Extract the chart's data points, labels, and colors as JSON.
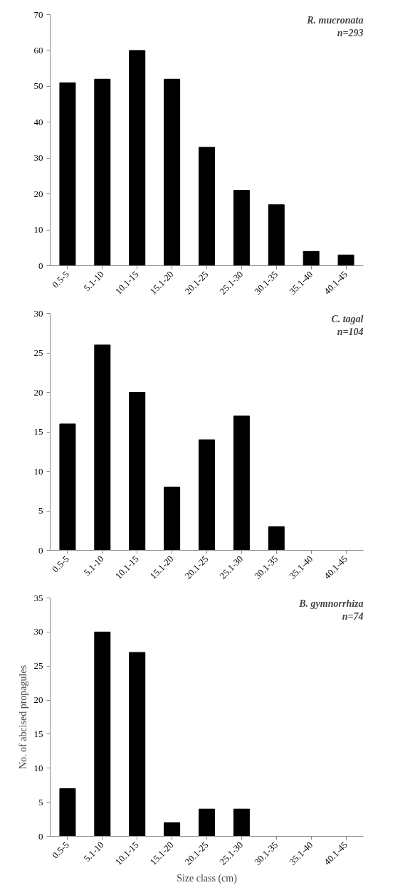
{
  "chart_data": [
    {
      "type": "bar",
      "categories": [
        "0.5-5",
        "5.1-10",
        "10.1-15",
        "15.1-20",
        "20.1-25",
        "25.1-30",
        "30.1-35",
        "35.1-40",
        "40.1-45"
      ],
      "values": [
        51,
        52,
        60,
        52,
        33,
        21,
        17,
        4,
        3
      ],
      "color": "#000000",
      "ylim": [
        0,
        70
      ],
      "yticks": [
        0,
        10,
        20,
        30,
        40,
        50,
        60,
        70
      ],
      "grid": false,
      "annotations": [
        "R. mucronata",
        "n=293"
      ]
    },
    {
      "type": "bar",
      "categories": [
        "0.5-5",
        "5.1-10",
        "10.1-15",
        "15.1-20",
        "20.1-25",
        "25.1-30",
        "30.1-35",
        "35.1-40",
        "40.1-45"
      ],
      "values": [
        16,
        26,
        20,
        8,
        14,
        17,
        3,
        0,
        0
      ],
      "color": "#000000",
      "ylim": [
        0,
        30
      ],
      "yticks": [
        0,
        5,
        10,
        15,
        20,
        25,
        30
      ],
      "grid": false,
      "annotations": [
        "C. tagal",
        "n=104"
      ]
    },
    {
      "type": "bar",
      "categories": [
        "0.5-5",
        "5.1-10",
        "10.1-15",
        "15.1-20",
        "20.1-25",
        "25.1-30",
        "30.1-35",
        "35.1-40",
        "40.1-45"
      ],
      "values": [
        7,
        30,
        27,
        2,
        4,
        4,
        0,
        0,
        0
      ],
      "color": "#000000",
      "ylim": [
        0,
        35
      ],
      "yticks": [
        0,
        5,
        10,
        15,
        20,
        25,
        30,
        35
      ],
      "grid": false,
      "xlabel": "Size class (cm)",
      "ylabel": "No. of abcised propagules",
      "annotations": [
        "B. gymnorrhiza",
        "n=74"
      ]
    }
  ]
}
